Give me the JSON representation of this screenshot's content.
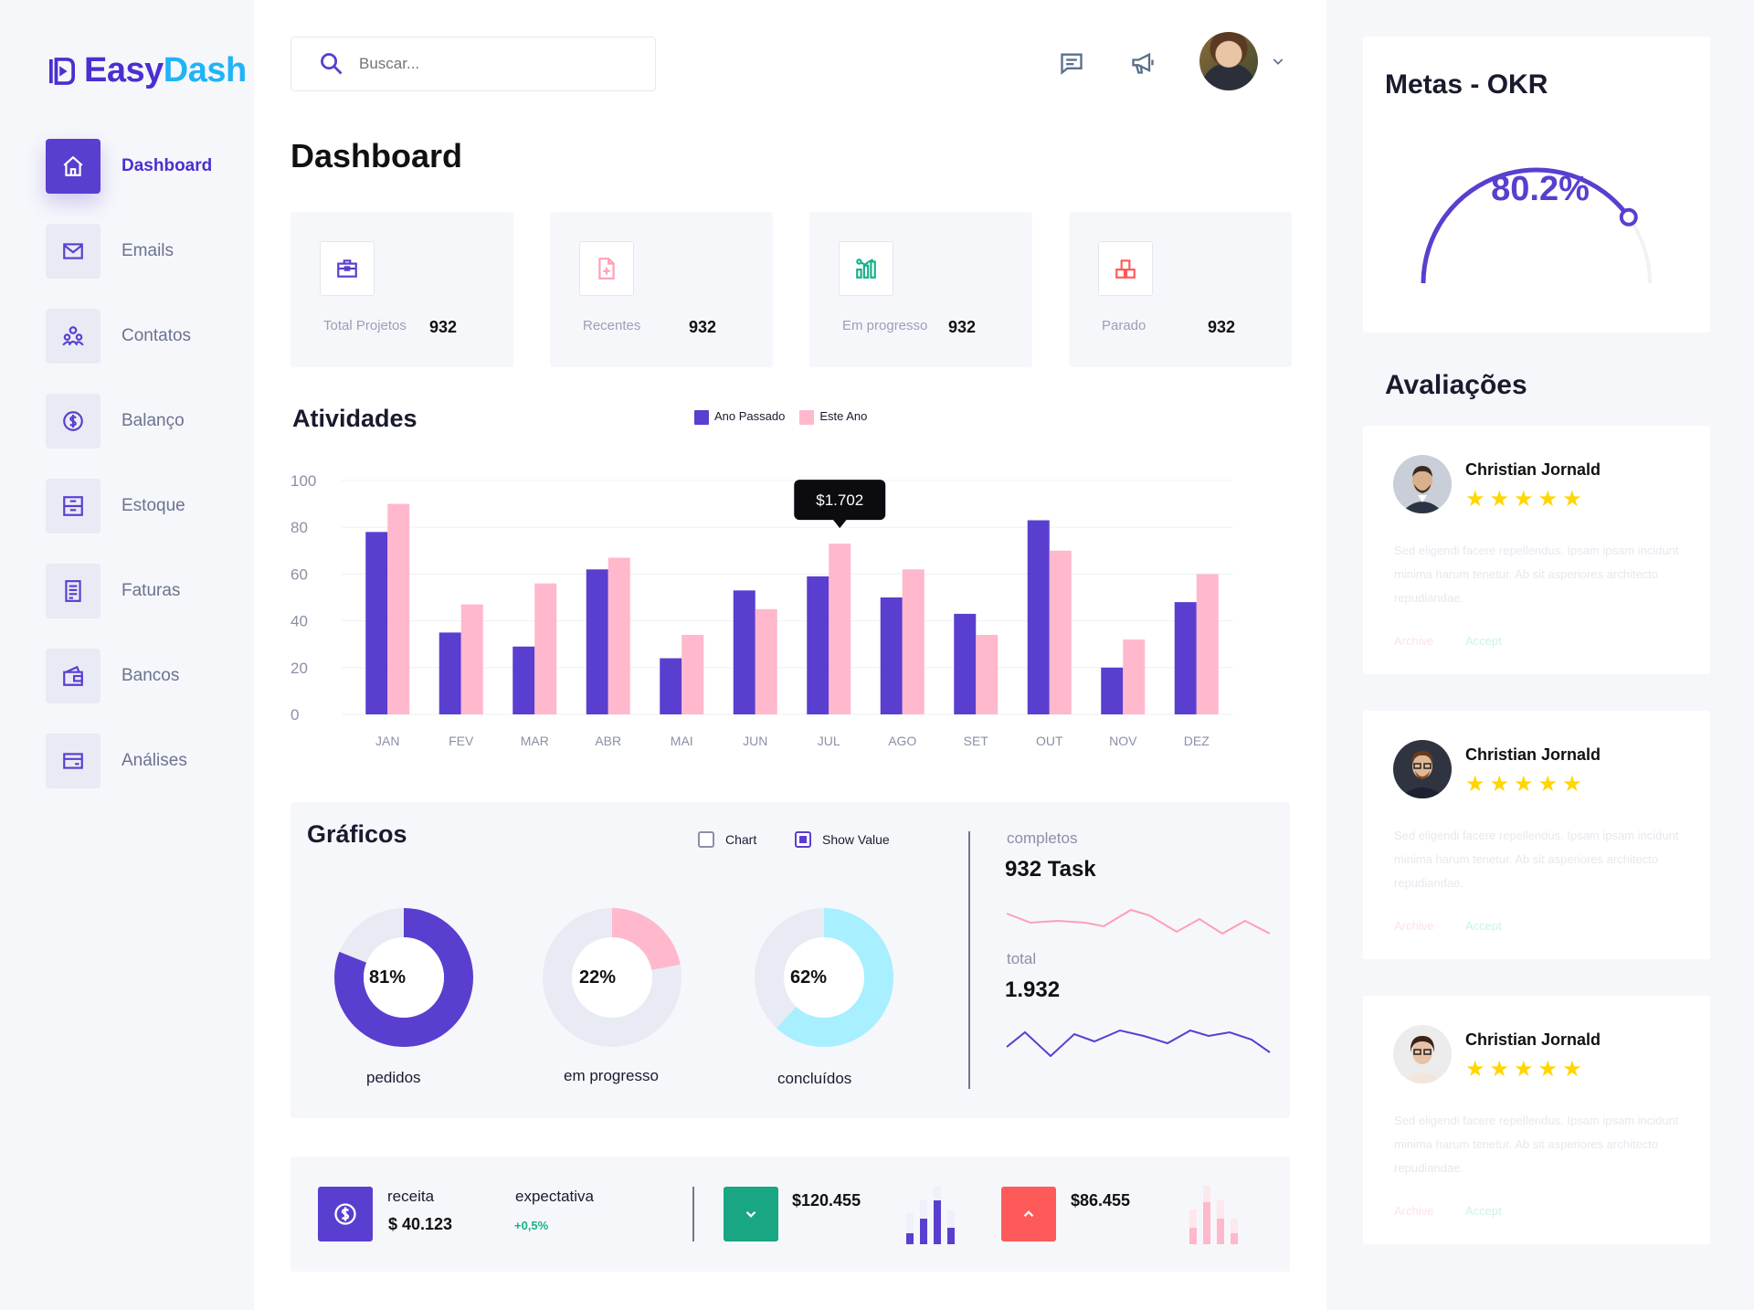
{
  "app": {
    "logo_part1": "Easy",
    "logo_part2": "Dash",
    "brand_color": "#5a3ecf",
    "accent_color": "#1fb4f5"
  },
  "sidebar": {
    "items": [
      {
        "label": "Dashboard",
        "icon": "home-icon",
        "active": true
      },
      {
        "label": "Emails",
        "icon": "mail-icon"
      },
      {
        "label": "Contatos",
        "icon": "contacts-icon"
      },
      {
        "label": "Balanço",
        "icon": "dollar-circle-icon"
      },
      {
        "label": "Estoque",
        "icon": "archive-icon"
      },
      {
        "label": "Faturas",
        "icon": "invoice-icon"
      },
      {
        "label": "Bancos",
        "icon": "wallet-icon"
      },
      {
        "label": "Análises",
        "icon": "card-icon"
      }
    ]
  },
  "header": {
    "search_placeholder": "Buscar...",
    "page_title": "Dashboard"
  },
  "stats": [
    {
      "label": "Total Projetos",
      "value": "932",
      "icon": "briefcase-icon",
      "color": "#5a3ecf"
    },
    {
      "label": "Recentes",
      "value": "932",
      "icon": "file-plus-icon",
      "color": "#ff9eb5"
    },
    {
      "label": "Em progresso",
      "value": "932",
      "icon": "chart-grid-icon",
      "color": "#18b08a"
    },
    {
      "label": "Parado",
      "value": "932",
      "icon": "boxes-icon",
      "color": "#ff5a5a"
    }
  ],
  "activities": {
    "title": "Atividades",
    "legend_last_year": "Ano Passado",
    "legend_this_year": "Este Ano",
    "tooltip": "$1.702"
  },
  "chart_data": {
    "type": "bar",
    "categories": [
      "JAN",
      "FEV",
      "MAR",
      "ABR",
      "MAI",
      "JUN",
      "JUL",
      "AGO",
      "SET",
      "OUT",
      "NOV",
      "DEZ"
    ],
    "series": [
      {
        "name": "Ano Passado",
        "color": "#5a3ecf",
        "values": [
          78,
          35,
          29,
          62,
          24,
          53,
          59,
          50,
          43,
          83,
          20,
          48
        ]
      },
      {
        "name": "Este Ano",
        "color": "#ffb8cc",
        "values": [
          90,
          47,
          56,
          67,
          34,
          45,
          73,
          62,
          34,
          70,
          32,
          60
        ]
      }
    ],
    "yticks": [
      "0",
      "20",
      "40",
      "60",
      "80",
      "100"
    ],
    "ylim": [
      0,
      100
    ],
    "grid": true,
    "legend": "top"
  },
  "graficos": {
    "title": "Gráficos",
    "chk_chart": "Chart",
    "chk_show_value": "Show Value",
    "donuts": [
      {
        "pct": "81%",
        "fraction": 0.81,
        "label": "pedidos",
        "color": "#5a3ecf",
        "track": "#e8ebf4"
      },
      {
        "pct": "22%",
        "fraction": 0.22,
        "label": "em progresso",
        "color": "#ffb8cc",
        "track": "#e8ebf4"
      },
      {
        "pct": "62%",
        "fraction": 0.62,
        "label": "concluídos",
        "color": "#a8efff",
        "track": "#e8ebf4"
      }
    ],
    "completed_label": "completos",
    "completed_value": "932 Task",
    "total_label": "total",
    "total_value": "1.932"
  },
  "bottom": {
    "receita_label": "receita",
    "receita_value": "$ 40.123",
    "expect_label": "expectativa",
    "expect_value": "+0,5%",
    "down_value": "$120.455",
    "up_value": "$86.455"
  },
  "okr": {
    "title": "Metas - OKR",
    "value": "80.2%",
    "fraction": 0.802
  },
  "reviews": {
    "title": "Avaliações",
    "items": [
      {
        "name": "Christian Jornald",
        "stars": "★★★★★",
        "text": "Sed eligendi facere repellendus. Ipsam ipsam incidunt minima harum tenetur. Ab sit asperiores architecto repudiandae.",
        "archive": "Archive",
        "accept": "Accept"
      },
      {
        "name": "Christian Jornald",
        "stars": "★★★★★",
        "text": "Sed eligendi facere repellendus. Ipsam ipsam incidunt minima harum tenetur. Ab sit asperiores architecto repudiandae.",
        "archive": "Archive",
        "accept": "Accept"
      },
      {
        "name": "Christian Jornald",
        "stars": "★★★★★",
        "text": "Sed eligendi facere repellendus. Ipsam ipsam incidunt minima harum tenetur. Ab sit asperiores architecto repudiandae.",
        "archive": "Archive",
        "accept": "Accept"
      }
    ]
  }
}
